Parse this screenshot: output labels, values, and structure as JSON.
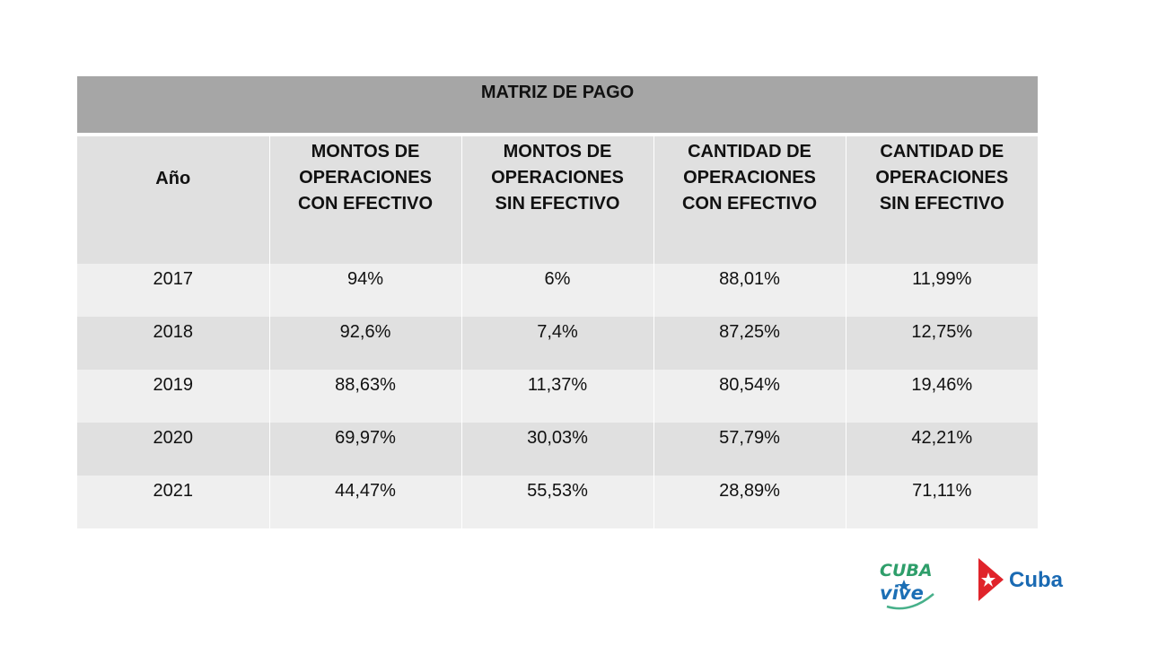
{
  "table": {
    "title": "MATRIZ DE PAGO",
    "headers": [
      {
        "lines": [
          "Año"
        ]
      },
      {
        "lines": [
          "MONTOS DE",
          "OPERACIONES",
          "CON EFECTIVO"
        ]
      },
      {
        "lines": [
          "MONTOS DE",
          "OPERACIONES",
          "SIN EFECTIVO"
        ]
      },
      {
        "lines": [
          "CANTIDAD DE",
          "OPERACIONES",
          "CON EFECTIVO"
        ]
      },
      {
        "lines": [
          "CANTIDAD DE",
          "OPERACIONES",
          "SIN EFECTIVO"
        ]
      }
    ],
    "rows": [
      [
        "2017",
        "94%",
        "6%",
        "88,01%",
        "11,99%"
      ],
      [
        "2018",
        "92,6%",
        "7,4%",
        "87,25%",
        "12,75%"
      ],
      [
        "2019",
        "88,63%",
        "11,37%",
        "80,54%",
        "19,46%"
      ],
      [
        "2020",
        "69,97%",
        "30,03%",
        "57,79%",
        "42,21%"
      ],
      [
        "2021",
        "44,47%",
        "55,53%",
        "28,89%",
        "71,11%"
      ]
    ]
  },
  "logos": {
    "vive": {
      "line1": "CUBA",
      "line2": "vive",
      "colors": [
        "#2e9e6a",
        "#1c6fb5",
        "#47b08a"
      ]
    },
    "cuba": {
      "text": "Cuba",
      "flag_red": "#e0242b",
      "text_color": "#1a6ab3"
    }
  }
}
